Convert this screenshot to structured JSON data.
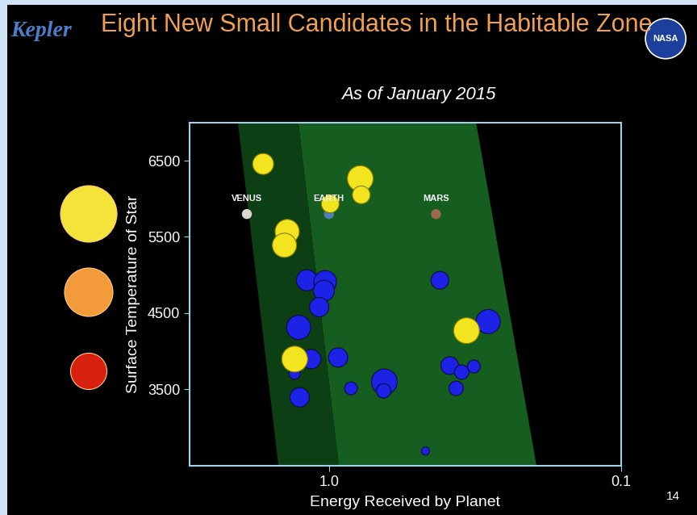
{
  "chart_data": {
    "type": "scatter",
    "title": "Eight New Small Candidates in the Habitable Zone",
    "subtitle": "As of January 2015",
    "x_label": "Energy Received by Planet",
    "y_label": "Surface Temperature of Star",
    "log": "x",
    "xlim": [
      3.0,
      0.1
    ],
    "xticks": [
      {
        "value": 1,
        "label": "1.0"
      },
      0.1
    ],
    "ylim": [
      2500,
      7000
    ],
    "yticks": [
      3500,
      4500,
      5500,
      6500
    ],
    "grid": false,
    "series": [
      {
        "color": "#1c22e6",
        "x": [
          1.19,
          1.03,
          1.04,
          1.08,
          1.27,
          1.15,
          0.93,
          1.31,
          1.26,
          0.84,
          0.646,
          0.65,
          0.417,
          0.386,
          0.351,
          0.319,
          0.367,
          0.285,
          0.467
        ],
        "values": [
          4931,
          4910,
          4793,
          4579,
          4313,
          3897,
          3918,
          3705,
          3395,
          3513,
          3598,
          3480,
          4931,
          3811,
          3726,
          3800,
          3513,
          4389,
          2691
        ],
        "radius": [
          1.3,
          1.4,
          1.3,
          1.2,
          1.5,
          1.2,
          1.2,
          0.7,
          1.2,
          0.8,
          1.6,
          0.9,
          1.1,
          1.1,
          0.9,
          0.8,
          0.9,
          1.5,
          0.5
        ]
      },
      {
        "color": "#f2e51f",
        "x": [
          1.68,
          0.781,
          0.775,
          0.99,
          1.39,
          1.42,
          0.338,
          1.31
        ],
        "values": [
          6457,
          6265,
          6052,
          5934,
          5571,
          5390,
          4270,
          3897
        ],
        "radius": [
          1.3,
          1.6,
          1.1,
          1.1,
          1.5,
          1.5,
          1.6,
          1.6
        ]
      }
    ],
    "annotations": [
      {
        "text": "VENUS",
        "x": 1.91,
        "y": 5800,
        "color": "#dcd8cf"
      },
      {
        "text": "EARTH",
        "x": 1.0,
        "y": 5800,
        "color": "#4f7fb8"
      },
      {
        "text": "MARS",
        "x": 0.43,
        "y": 5800,
        "color": "#9a6a4a"
      }
    ]
  },
  "logo": "Kepler",
  "agency": "NASA",
  "slide_number": 14
}
